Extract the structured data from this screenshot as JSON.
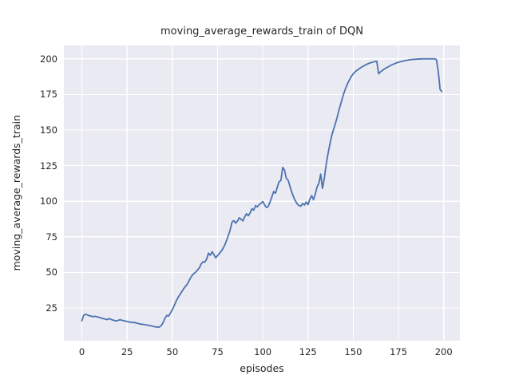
{
  "figure": {
    "title": "moving_average_rewards_train of DQN",
    "xlabel": "episodes",
    "ylabel": "moving_average_rewards_train"
  },
  "chart_data": {
    "type": "line",
    "title": "moving_average_rewards_train of DQN",
    "xlabel": "episodes",
    "ylabel": "moving_average_rewards_train",
    "x_ticks": [
      0,
      25,
      50,
      75,
      100,
      125,
      150,
      175,
      200
    ],
    "y_ticks": [
      25,
      50,
      75,
      100,
      125,
      150,
      175,
      200
    ],
    "xlim": [
      -9.95,
      208.95
    ],
    "ylim": [
      2.0,
      209.4
    ],
    "grid": true,
    "legend": "none",
    "colors": {
      "line": "#4c72b0",
      "axes_background": "#eaeaf2",
      "grid": "#ffffff",
      "figure_background": "#ffffff",
      "text": "#262626"
    },
    "series": [
      {
        "name": "moving_average_rewards_train",
        "x0": 0,
        "dx": 1,
        "y": [
          16.0,
          19.8,
          20.6,
          20.1,
          19.6,
          19.3,
          18.9,
          19.2,
          18.9,
          18.6,
          18.2,
          17.8,
          17.4,
          17.2,
          16.8,
          17.5,
          17.1,
          16.5,
          16.2,
          15.9,
          16.2,
          16.8,
          16.4,
          16.1,
          15.8,
          15.5,
          15.2,
          15.0,
          14.7,
          14.9,
          14.4,
          14.1,
          13.8,
          13.6,
          13.4,
          13.2,
          13.0,
          12.8,
          12.5,
          12.2,
          11.9,
          11.7,
          11.5,
          11.7,
          12.8,
          15.0,
          18.0,
          19.8,
          19.4,
          21.5,
          23.8,
          26.5,
          29.5,
          32.0,
          34.0,
          36.0,
          38.0,
          39.8,
          41.3,
          43.5,
          46.0,
          48.0,
          49.2,
          50.3,
          51.8,
          53.3,
          56.0,
          57.5,
          57.2,
          59.5,
          63.5,
          62.0,
          64.5,
          62.4,
          60.3,
          61.8,
          63.3,
          64.8,
          66.8,
          69.2,
          72.5,
          76.0,
          80.0,
          85.3,
          86.4,
          84.6,
          86.0,
          88.4,
          87.3,
          86.2,
          89.0,
          91.2,
          89.8,
          91.8,
          94.7,
          93.8,
          96.9,
          96.0,
          97.6,
          98.6,
          99.8,
          97.4,
          95.6,
          96.3,
          99.5,
          103.0,
          106.8,
          105.6,
          109.8,
          113.7,
          114.5,
          123.8,
          121.9,
          116.0,
          114.8,
          110.5,
          106.5,
          103.0,
          100.3,
          98.2,
          96.9,
          96.5,
          98.4,
          97.3,
          99.4,
          97.6,
          101.5,
          103.9,
          101.0,
          105.0,
          110.0,
          112.6,
          119.0,
          109.0,
          116.0,
          125.5,
          133.0,
          139.5,
          145.5,
          150.0,
          154.0,
          158.5,
          163.5,
          168.0,
          172.5,
          176.5,
          180.0,
          183.0,
          185.5,
          187.8,
          189.5,
          190.8,
          191.9,
          192.8,
          193.7,
          194.5,
          195.2,
          195.9,
          196.5,
          197.0,
          197.4,
          197.8,
          198.1,
          198.4,
          189.5,
          190.8,
          191.8,
          192.7,
          193.5,
          194.2,
          194.9,
          195.6,
          196.2,
          196.7,
          197.2,
          197.6,
          198.0,
          198.3,
          198.6,
          198.9,
          199.1,
          199.3,
          199.5,
          199.6,
          199.7,
          199.8,
          199.9,
          199.9,
          200.0,
          200.0,
          200.0,
          200.0,
          200.0,
          200.0,
          200.0,
          200.0,
          199.5,
          191.0,
          178.5,
          177.0
        ]
      }
    ]
  }
}
